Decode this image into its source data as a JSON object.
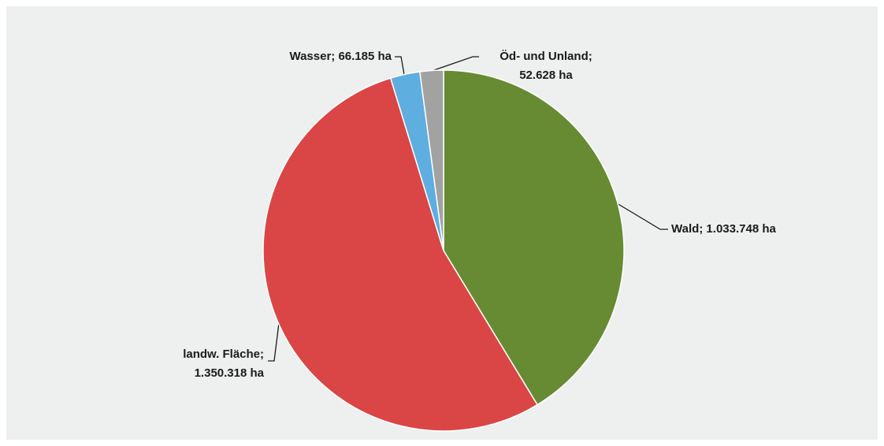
{
  "chart_data": {
    "type": "pie",
    "values": [
      1033748,
      1350318,
      66185,
      52628
    ],
    "value_labels": [
      [
        "Wald; 1.033.748 ha"
      ],
      [
        "landw. Fläche;",
        "1.350.318 ha"
      ],
      [
        "Wasser; 66.185 ha"
      ],
      [
        "Öd- und Unland;",
        "52.628 ha"
      ]
    ],
    "colors": [
      "#668b32",
      "#d94645",
      "#5eaee0",
      "#a2a2a2"
    ]
  }
}
